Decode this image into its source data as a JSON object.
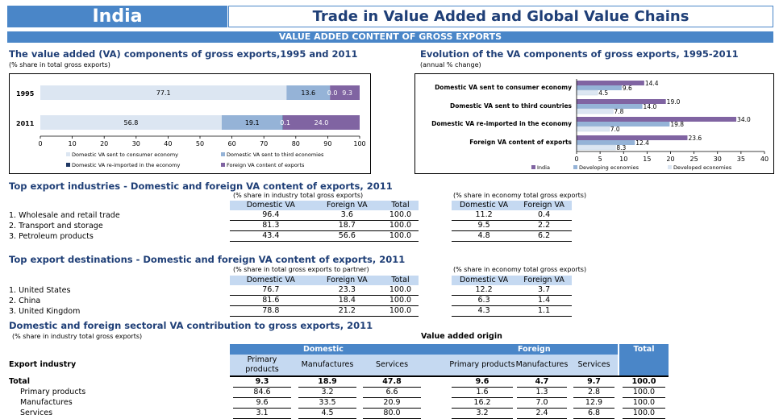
{
  "header": {
    "country": "India",
    "title": "Trade in Value Added and Global Value Chains"
  },
  "band": "VALUE ADDED CONTENT OF GROSS EXPORTS",
  "chart_left": {
    "title": "The value added (VA) components of gross exports,1995 and 2011",
    "note": "(% share in total gross exports)",
    "chart_data": {
      "type": "bar",
      "orientation": "horizontal-stacked",
      "categories": [
        "1995",
        "2011"
      ],
      "series": [
        {
          "name": "Domestic VA sent to consumer economy",
          "values": [
            77.1,
            56.8
          ],
          "color": "#dce6f2"
        },
        {
          "name": "Domestic VA sent to third economies",
          "values": [
            13.6,
            19.1
          ],
          "color": "#95b3d7"
        },
        {
          "name": "Domestic VA re-imported in the economy",
          "values": [
            0.0,
            0.1
          ],
          "color": "#1f3864"
        },
        {
          "name": "Foreign VA content of exports",
          "values": [
            9.3,
            24.0
          ],
          "color": "#8064a2"
        }
      ],
      "xlim": [
        0,
        100
      ],
      "xticks": [
        "0",
        "10",
        "20",
        "30",
        "40",
        "50",
        "60",
        "70",
        "80",
        "90",
        "100"
      ],
      "labels": [
        [
          "77.1",
          "13.6",
          "0.0",
          "9.3"
        ],
        [
          "56.8",
          "19.1",
          "0.1",
          "24.0"
        ]
      ]
    }
  },
  "chart_right": {
    "title": "Evolution of the VA components of gross exports, 1995-2011",
    "note": "(annual % change)",
    "chart_data": {
      "type": "bar",
      "orientation": "horizontal-grouped",
      "categories": [
        "Domestic VA sent to consumer economy",
        "Domestic VA sent to third countries",
        "Domestic VA re-imported in the economy",
        "Foreign VA content of exports"
      ],
      "series": [
        {
          "name": "India",
          "values": [
            14.4,
            19.0,
            34.0,
            23.6
          ],
          "color": "#8064a2"
        },
        {
          "name": "Developing economies",
          "values": [
            9.6,
            14.0,
            19.8,
            12.4
          ],
          "color": "#95b3d7"
        },
        {
          "name": "Developed economies",
          "values": [
            4.5,
            7.8,
            7.0,
            8.3
          ],
          "color": "#dce6f2"
        }
      ],
      "xlim": [
        0,
        40
      ],
      "xticks": [
        "0",
        "5",
        "10",
        "15",
        "20",
        "25",
        "30",
        "35",
        "40"
      ]
    }
  },
  "industries": {
    "title": "Top export industries - Domestic and foreign VA content of exports, 2011",
    "note_left": "(% share in industry total gross exports)",
    "note_right": "(% share in economy total gross exports)",
    "headers_left": [
      "Domestic VA",
      "Foreign VA",
      "Total"
    ],
    "headers_right": [
      "Domestic VA",
      "Foreign VA"
    ],
    "rows": [
      {
        "label": "1. Wholesale and retail trade",
        "v": [
          "96.4",
          "3.6",
          "100.0"
        ],
        "e": [
          "11.2",
          "0.4"
        ]
      },
      {
        "label": "2. Transport and storage",
        "v": [
          "81.3",
          "18.7",
          "100.0"
        ],
        "e": [
          "9.5",
          "2.2"
        ]
      },
      {
        "label": "3. Petroleum products",
        "v": [
          "43.4",
          "56.6",
          "100.0"
        ],
        "e": [
          "4.8",
          "6.2"
        ]
      }
    ]
  },
  "destinations": {
    "title": "Top export destinations - Domestic and foreign VA content of exports, 2011",
    "note_left": "(% share in total gross exports to partner)",
    "note_right": "(% share in economy total gross exports)",
    "headers_left": [
      "Domestic VA",
      "Foreign VA",
      "Total"
    ],
    "headers_right": [
      "Domestic VA",
      "Foreign VA"
    ],
    "rows": [
      {
        "label": "1. United States",
        "v": [
          "76.7",
          "23.3",
          "100.0"
        ],
        "e": [
          "12.2",
          "3.7"
        ]
      },
      {
        "label": "2. China",
        "v": [
          "81.6",
          "18.4",
          "100.0"
        ],
        "e": [
          "6.3",
          "1.4"
        ]
      },
      {
        "label": "3. United Kingdom",
        "v": [
          "78.8",
          "21.2",
          "100.0"
        ],
        "e": [
          "4.3",
          "1.1"
        ]
      }
    ]
  },
  "sectoral": {
    "title": "Domestic and foreign sectoral VA contribution to gross exports, 2011",
    "note": "(% share in industry total gross exports)",
    "origin_label": "Value added origin",
    "group_domestic": "Domestic",
    "group_foreign": "Foreign",
    "group_total": "Total",
    "row_header": "Export industry",
    "sub_headers": [
      "Primary products",
      "Manufactures",
      "Services",
      "Primary products",
      "Manufactures",
      "Services"
    ],
    "rows": [
      {
        "label": "Total",
        "v": [
          "9.3",
          "18.9",
          "47.8",
          "9.6",
          "4.7",
          "9.7",
          "100.0"
        ]
      },
      {
        "label": "Primary products",
        "v": [
          "84.6",
          "3.2",
          "6.6",
          "1.6",
          "1.3",
          "2.8",
          "100.0"
        ]
      },
      {
        "label": "Manufactures",
        "v": [
          "9.6",
          "33.5",
          "20.9",
          "16.2",
          "7.0",
          "12.9",
          "100.0"
        ]
      },
      {
        "label": "Services",
        "v": [
          "3.1",
          "4.5",
          "80.0",
          "3.2",
          "2.4",
          "6.8",
          "100.0"
        ]
      }
    ]
  },
  "colors": {
    "accent": "#4a86c8",
    "title_text": "#1f3f77",
    "header_cell": "#c5d9f1"
  }
}
